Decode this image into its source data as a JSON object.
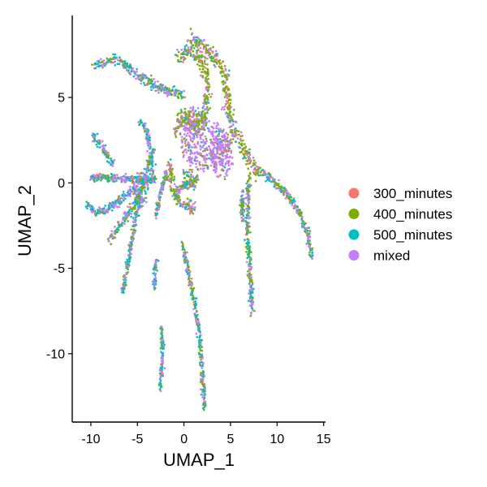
{
  "chart_data": {
    "type": "scatter",
    "xlabel": "UMAP_1",
    "ylabel": "UMAP_2",
    "xlim": [
      -12,
      15.2
    ],
    "ylim": [
      -14,
      9.8
    ],
    "x_ticks": [
      -10,
      -5,
      0,
      5,
      10,
      15
    ],
    "y_ticks": [
      -10,
      -5,
      0,
      5
    ],
    "x_tick_labels": [
      "-10",
      "-5",
      "0",
      "5",
      "10",
      "15"
    ],
    "y_tick_labels": [
      "-10",
      "-5",
      "0",
      "5"
    ],
    "grid": false,
    "legend_placement": "right",
    "series": [
      {
        "name": "300_minutes",
        "color": "#F8766D"
      },
      {
        "name": "400_minutes",
        "color": "#7CAE00"
      },
      {
        "name": "500_minutes",
        "color": "#00BFC4"
      },
      {
        "name": "mixed",
        "color": "#C77CFF"
      }
    ],
    "structures": [
      {
        "kind": "path",
        "series_weights": [
          0.04,
          0.22,
          0.38,
          0.36
        ],
        "width": 0.28,
        "points": [
          [
            -9.5,
            6.8
          ],
          [
            -8.5,
            7.1
          ],
          [
            -7.2,
            7.2
          ],
          [
            -6,
            6.8
          ],
          [
            -5,
            6.4
          ],
          [
            -4,
            6.0
          ],
          [
            -2.8,
            5.6
          ],
          [
            -1.5,
            5.3
          ],
          [
            0,
            5.2
          ]
        ]
      },
      {
        "kind": "path",
        "series_weights": [
          0.03,
          0.2,
          0.42,
          0.35
        ],
        "width": 0.25,
        "points": [
          [
            -4.8,
            3.6
          ],
          [
            -4.2,
            3.3
          ],
          [
            -3.8,
            2.6
          ],
          [
            -3.5,
            1.6
          ],
          [
            -3.4,
            0.8
          ],
          [
            -3.5,
            0
          ]
        ]
      },
      {
        "kind": "path",
        "series_weights": [
          0.03,
          0.22,
          0.4,
          0.35
        ],
        "width": 0.22,
        "points": [
          [
            -9.8,
            2.8
          ],
          [
            -9.3,
            2.4
          ],
          [
            -8.6,
            1.9
          ],
          [
            -8,
            1.4
          ],
          [
            -7.6,
            1.1
          ]
        ]
      },
      {
        "kind": "path",
        "series_weights": [
          0.04,
          0.25,
          0.36,
          0.35
        ],
        "width": 0.22,
        "points": [
          [
            -10,
            0.3
          ],
          [
            -8.5,
            0.3
          ],
          [
            -7,
            0.3
          ],
          [
            -5.5,
            0.2
          ],
          [
            -4,
            0.2
          ],
          [
            -3,
            0.2
          ]
        ]
      },
      {
        "kind": "path",
        "series_weights": [
          0.03,
          0.22,
          0.4,
          0.35
        ],
        "width": 0.25,
        "points": [
          [
            -10.5,
            -1.2
          ],
          [
            -9.5,
            -1.7
          ],
          [
            -8.4,
            -1.6
          ],
          [
            -7.2,
            -1.2
          ],
          [
            -6,
            -0.6
          ],
          [
            -5,
            -0.2
          ]
        ]
      },
      {
        "kind": "path",
        "series_weights": [
          0.03,
          0.3,
          0.35,
          0.32
        ],
        "width": 0.25,
        "points": [
          [
            -8,
            -3.4
          ],
          [
            -7,
            -2.6
          ],
          [
            -6,
            -1.8
          ],
          [
            -5,
            -1
          ],
          [
            -4.5,
            -0.4
          ],
          [
            -4,
            0.6
          ],
          [
            -3.6,
            1.4
          ],
          [
            -3.2,
            1.8
          ]
        ]
      },
      {
        "kind": "path",
        "series_weights": [
          0.03,
          0.18,
          0.45,
          0.34
        ],
        "width": 0.22,
        "points": [
          [
            -6.6,
            -6.4
          ],
          [
            -6.2,
            -5.2
          ],
          [
            -5.8,
            -4
          ],
          [
            -5.4,
            -2.8
          ],
          [
            -5,
            -1.6
          ],
          [
            -4.6,
            -0.8
          ]
        ]
      },
      {
        "kind": "path",
        "series_weights": [
          0.03,
          0.18,
          0.45,
          0.34
        ],
        "width": 0.2,
        "points": [
          [
            -3.2,
            -6.2
          ],
          [
            -3.1,
            -5.2
          ],
          [
            -3,
            -4.5
          ]
        ]
      },
      {
        "kind": "path",
        "series_weights": [
          0.03,
          0.25,
          0.4,
          0.32
        ],
        "width": 0.22,
        "points": [
          [
            -3,
            -2
          ],
          [
            -2.7,
            -1
          ],
          [
            -2.2,
            0
          ],
          [
            -1.8,
            0.7
          ]
        ]
      },
      {
        "kind": "path",
        "series_weights": [
          0.05,
          0.2,
          0.45,
          0.3
        ],
        "width": 0.2,
        "points": [
          [
            -2.4,
            -8.5
          ],
          [
            -2.3,
            -9.8
          ],
          [
            -2.4,
            -11
          ],
          [
            -2.5,
            -12
          ]
        ]
      },
      {
        "kind": "path",
        "series_weights": [
          0.06,
          0.25,
          0.38,
          0.31
        ],
        "width": 0.22,
        "points": [
          [
            -0.2,
            -3.6
          ],
          [
            0.3,
            -4.8
          ],
          [
            0.8,
            -6.2
          ],
          [
            1.3,
            -7.6
          ],
          [
            1.7,
            -9
          ],
          [
            1.9,
            -10.4
          ],
          [
            2,
            -11.6
          ],
          [
            2.2,
            -12.8
          ],
          [
            2.2,
            -13.2
          ]
        ]
      },
      {
        "kind": "path",
        "series_weights": [
          0.03,
          0.3,
          0.35,
          0.32
        ],
        "width": 0.25,
        "points": [
          [
            7.3,
            -7.6
          ],
          [
            7.2,
            -6.2
          ],
          [
            7,
            -4.6
          ],
          [
            6.8,
            -3
          ],
          [
            6.8,
            -1.6
          ],
          [
            6.9,
            -0.4
          ],
          [
            7,
            0.5
          ]
        ]
      },
      {
        "kind": "path",
        "series_weights": [
          0.03,
          0.25,
          0.38,
          0.34
        ],
        "width": 0.22,
        "points": [
          [
            6.3,
            -2.2
          ],
          [
            6.2,
            -1.4
          ],
          [
            6.3,
            -0.4
          ]
        ]
      },
      {
        "kind": "path",
        "series_weights": [
          0.04,
          0.3,
          0.34,
          0.32
        ],
        "width": 0.25,
        "points": [
          [
            8.5,
            0.6
          ],
          [
            9.6,
            0.1
          ],
          [
            10.6,
            -0.4
          ],
          [
            11.6,
            -1
          ],
          [
            12.6,
            -2
          ],
          [
            13.3,
            -3
          ],
          [
            13.8,
            -4.4
          ]
        ]
      },
      {
        "kind": "path",
        "series_weights": [
          0.12,
          0.55,
          0.12,
          0.21
        ],
        "width": 0.45,
        "points": [
          [
            0.4,
            8.5
          ],
          [
            1.2,
            8.2
          ],
          [
            2,
            8
          ],
          [
            2.8,
            7.6
          ],
          [
            3.8,
            7
          ],
          [
            4.4,
            6.4
          ],
          [
            4.6,
            5.6
          ],
          [
            4.7,
            4.8
          ],
          [
            4.8,
            4
          ],
          [
            5.4,
            3
          ],
          [
            6.2,
            2.2
          ],
          [
            7,
            1.4
          ],
          [
            7.6,
            0.8
          ],
          [
            8.2,
            0.4
          ]
        ]
      },
      {
        "kind": "path",
        "series_weights": [
          0.1,
          0.6,
          0.1,
          0.2
        ],
        "width": 0.4,
        "points": [
          [
            -0.8,
            7.2
          ],
          [
            0.4,
            7.8
          ],
          [
            1.8,
            7.2
          ],
          [
            2.4,
            6.4
          ],
          [
            2.6,
            5.4
          ],
          [
            2.4,
            4.6
          ],
          [
            2,
            3.8
          ],
          [
            1.4,
            3.4
          ],
          [
            0.8,
            3.6
          ],
          [
            0,
            4.0
          ],
          [
            -0.6,
            3.4
          ],
          [
            -0.9,
            2.8
          ]
        ]
      },
      {
        "kind": "path",
        "series_weights": [
          0.08,
          0.5,
          0.12,
          0.3
        ],
        "width": 0.35,
        "points": [
          [
            -1.6,
            1.2
          ],
          [
            -1.4,
            0.4
          ],
          [
            -1.2,
            -0.4
          ],
          [
            -0.6,
            -1
          ],
          [
            0,
            -1.2
          ],
          [
            0.6,
            -1.4
          ],
          [
            1.2,
            -1.6
          ]
        ]
      },
      {
        "kind": "path",
        "series_weights": [
          0.08,
          0.48,
          0.14,
          0.3
        ],
        "width": 0.3,
        "points": [
          [
            -0.8,
            -0.6
          ],
          [
            0,
            -0.2
          ],
          [
            0.8,
            0
          ],
          [
            1.4,
            0.2
          ]
        ]
      },
      {
        "kind": "blob",
        "series_weights": [
          0.04,
          0.12,
          0.06,
          0.78
        ],
        "cx": 2.2,
        "cy": 2.2,
        "rx": 2.6,
        "ry": 1.5
      },
      {
        "kind": "blob",
        "series_weights": [
          0.04,
          0.12,
          0.06,
          0.78
        ],
        "cx": 4.1,
        "cy": 1.6,
        "rx": 1.1,
        "ry": 1.4
      },
      {
        "kind": "blob",
        "series_weights": [
          0.05,
          0.35,
          0.1,
          0.5
        ],
        "cx": 1.0,
        "cy": 3.6,
        "rx": 1.4,
        "ry": 0.8
      },
      {
        "kind": "blob",
        "series_weights": [
          0.03,
          0.2,
          0.27,
          0.5
        ],
        "cx": -4.6,
        "cy": -0.4,
        "rx": 0.8,
        "ry": 1.1
      },
      {
        "kind": "blob",
        "series_weights": [
          0.05,
          0.3,
          0.2,
          0.45
        ],
        "cx": 0.6,
        "cy": 0.2,
        "rx": 1.0,
        "ry": 0.6
      }
    ]
  }
}
